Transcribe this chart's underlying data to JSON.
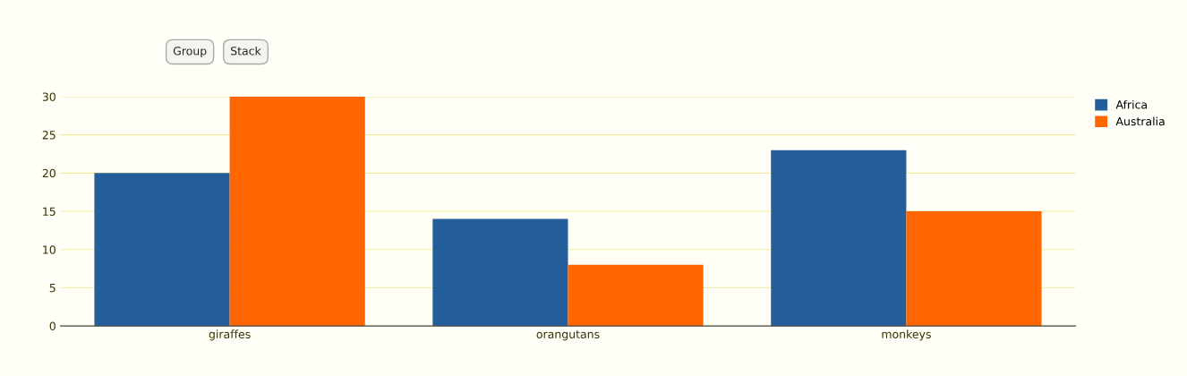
{
  "chart_data": {
    "type": "bar",
    "categories": [
      "giraffes",
      "orangutans",
      "monkeys"
    ],
    "series": [
      {
        "name": "Africa",
        "color": "#245f9c",
        "values": [
          20,
          14,
          23
        ]
      },
      {
        "name": "Australia",
        "color": "#ff6600",
        "values": [
          30,
          8,
          15
        ]
      }
    ],
    "ylim": [
      0,
      30
    ],
    "yticks": [
      0,
      5,
      10,
      15,
      20,
      25,
      30
    ],
    "grid": "y",
    "legend": "top right",
    "annotations": [
      "Group",
      "Stack"
    ]
  }
}
